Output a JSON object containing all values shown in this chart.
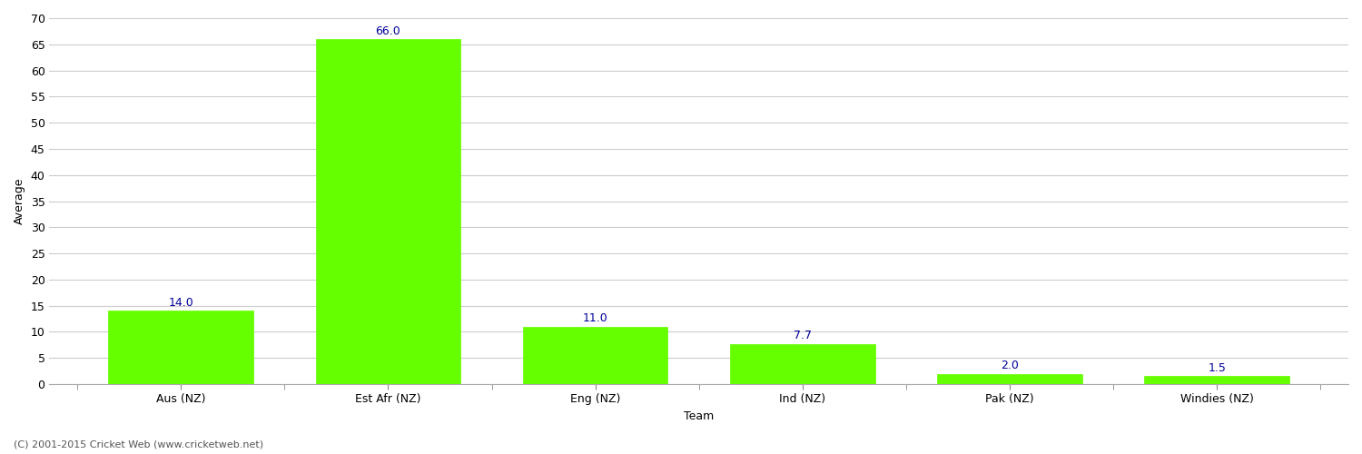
{
  "categories": [
    "Aus (NZ)",
    "Est Afr (NZ)",
    "Eng (NZ)",
    "Ind (NZ)",
    "Pak (NZ)",
    "Windies (NZ)"
  ],
  "values": [
    14.0,
    66.0,
    11.0,
    7.7,
    2.0,
    1.5
  ],
  "bar_color": "#66ff00",
  "bar_edge_color": "#66ff00",
  "ylabel": "Average",
  "xlabel": "Team",
  "ylim": [
    0,
    70
  ],
  "yticks": [
    0,
    5,
    10,
    15,
    20,
    25,
    30,
    35,
    40,
    45,
    50,
    55,
    60,
    65,
    70
  ],
  "value_label_color": "#000099",
  "value_label_fontsize": 9,
  "grid_color": "#cccccc",
  "background_color": "#ffffff",
  "footer_text": "(C) 2001-2015 Cricket Web (www.cricketweb.net)",
  "footer_fontsize": 8,
  "footer_color": "#555555",
  "axis_label_fontsize": 9,
  "tick_label_fontsize": 9,
  "bar_width": 0.7
}
